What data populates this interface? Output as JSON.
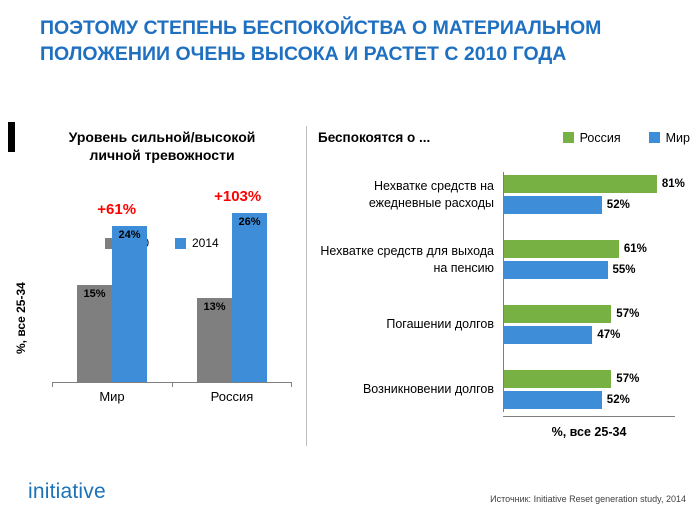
{
  "slide": {
    "title_line1": "ПОЭТОМУ СТЕПЕНЬ БЕСПОКОЙСТВА О МАТЕРИАЛЬНОМ",
    "title_line2": "ПОЛОЖЕНИИ ОЧЕНЬ ВЫСОКА И РАСТЕТ С 2010 ГОДА",
    "footer_logo": "initiative",
    "source": "Источник: Initiative Reset generation study, 2014"
  },
  "colors": {
    "title_blue": "#1F70C1",
    "bar_gray": "#7F7F7F",
    "bar_blue": "#3E8DD8",
    "bar_green": "#77B043",
    "annotation_red": "#FF0000"
  },
  "chart_data": [
    {
      "type": "bar",
      "orientation": "vertical",
      "title": "Уровень сильной/высокой личной тревожности",
      "ylabel": "%, все 25-34",
      "categories": [
        "Мир",
        "Россия"
      ],
      "series": [
        {
          "name": "2010",
          "values": [
            15,
            13
          ],
          "color": "#7F7F7F"
        },
        {
          "name": "2014",
          "values": [
            24,
            26
          ],
          "color": "#3E8DD8"
        }
      ],
      "annotations": [
        "+61%",
        "+103%"
      ],
      "ylim": [
        0,
        30
      ],
      "value_suffix": "%",
      "legend_position": "bottom",
      "grid": false
    },
    {
      "type": "bar",
      "orientation": "horizontal",
      "title": "Беспокоятся о ...",
      "xlabel": "%, все 25-34",
      "categories": [
        "Нехватке средств на ежедневные расходы",
        "Нехватке средств для выхода на пенсию",
        "Погашении долгов",
        "Возникновении долгов"
      ],
      "series": [
        {
          "name": "Россия",
          "values": [
            81,
            61,
            57,
            57
          ],
          "color": "#77B043"
        },
        {
          "name": "Мир",
          "values": [
            52,
            55,
            47,
            52
          ],
          "color": "#3E8DD8"
        }
      ],
      "xlim": [
        0,
        90
      ],
      "value_suffix": "%",
      "legend_position": "top",
      "grid": false
    }
  ]
}
